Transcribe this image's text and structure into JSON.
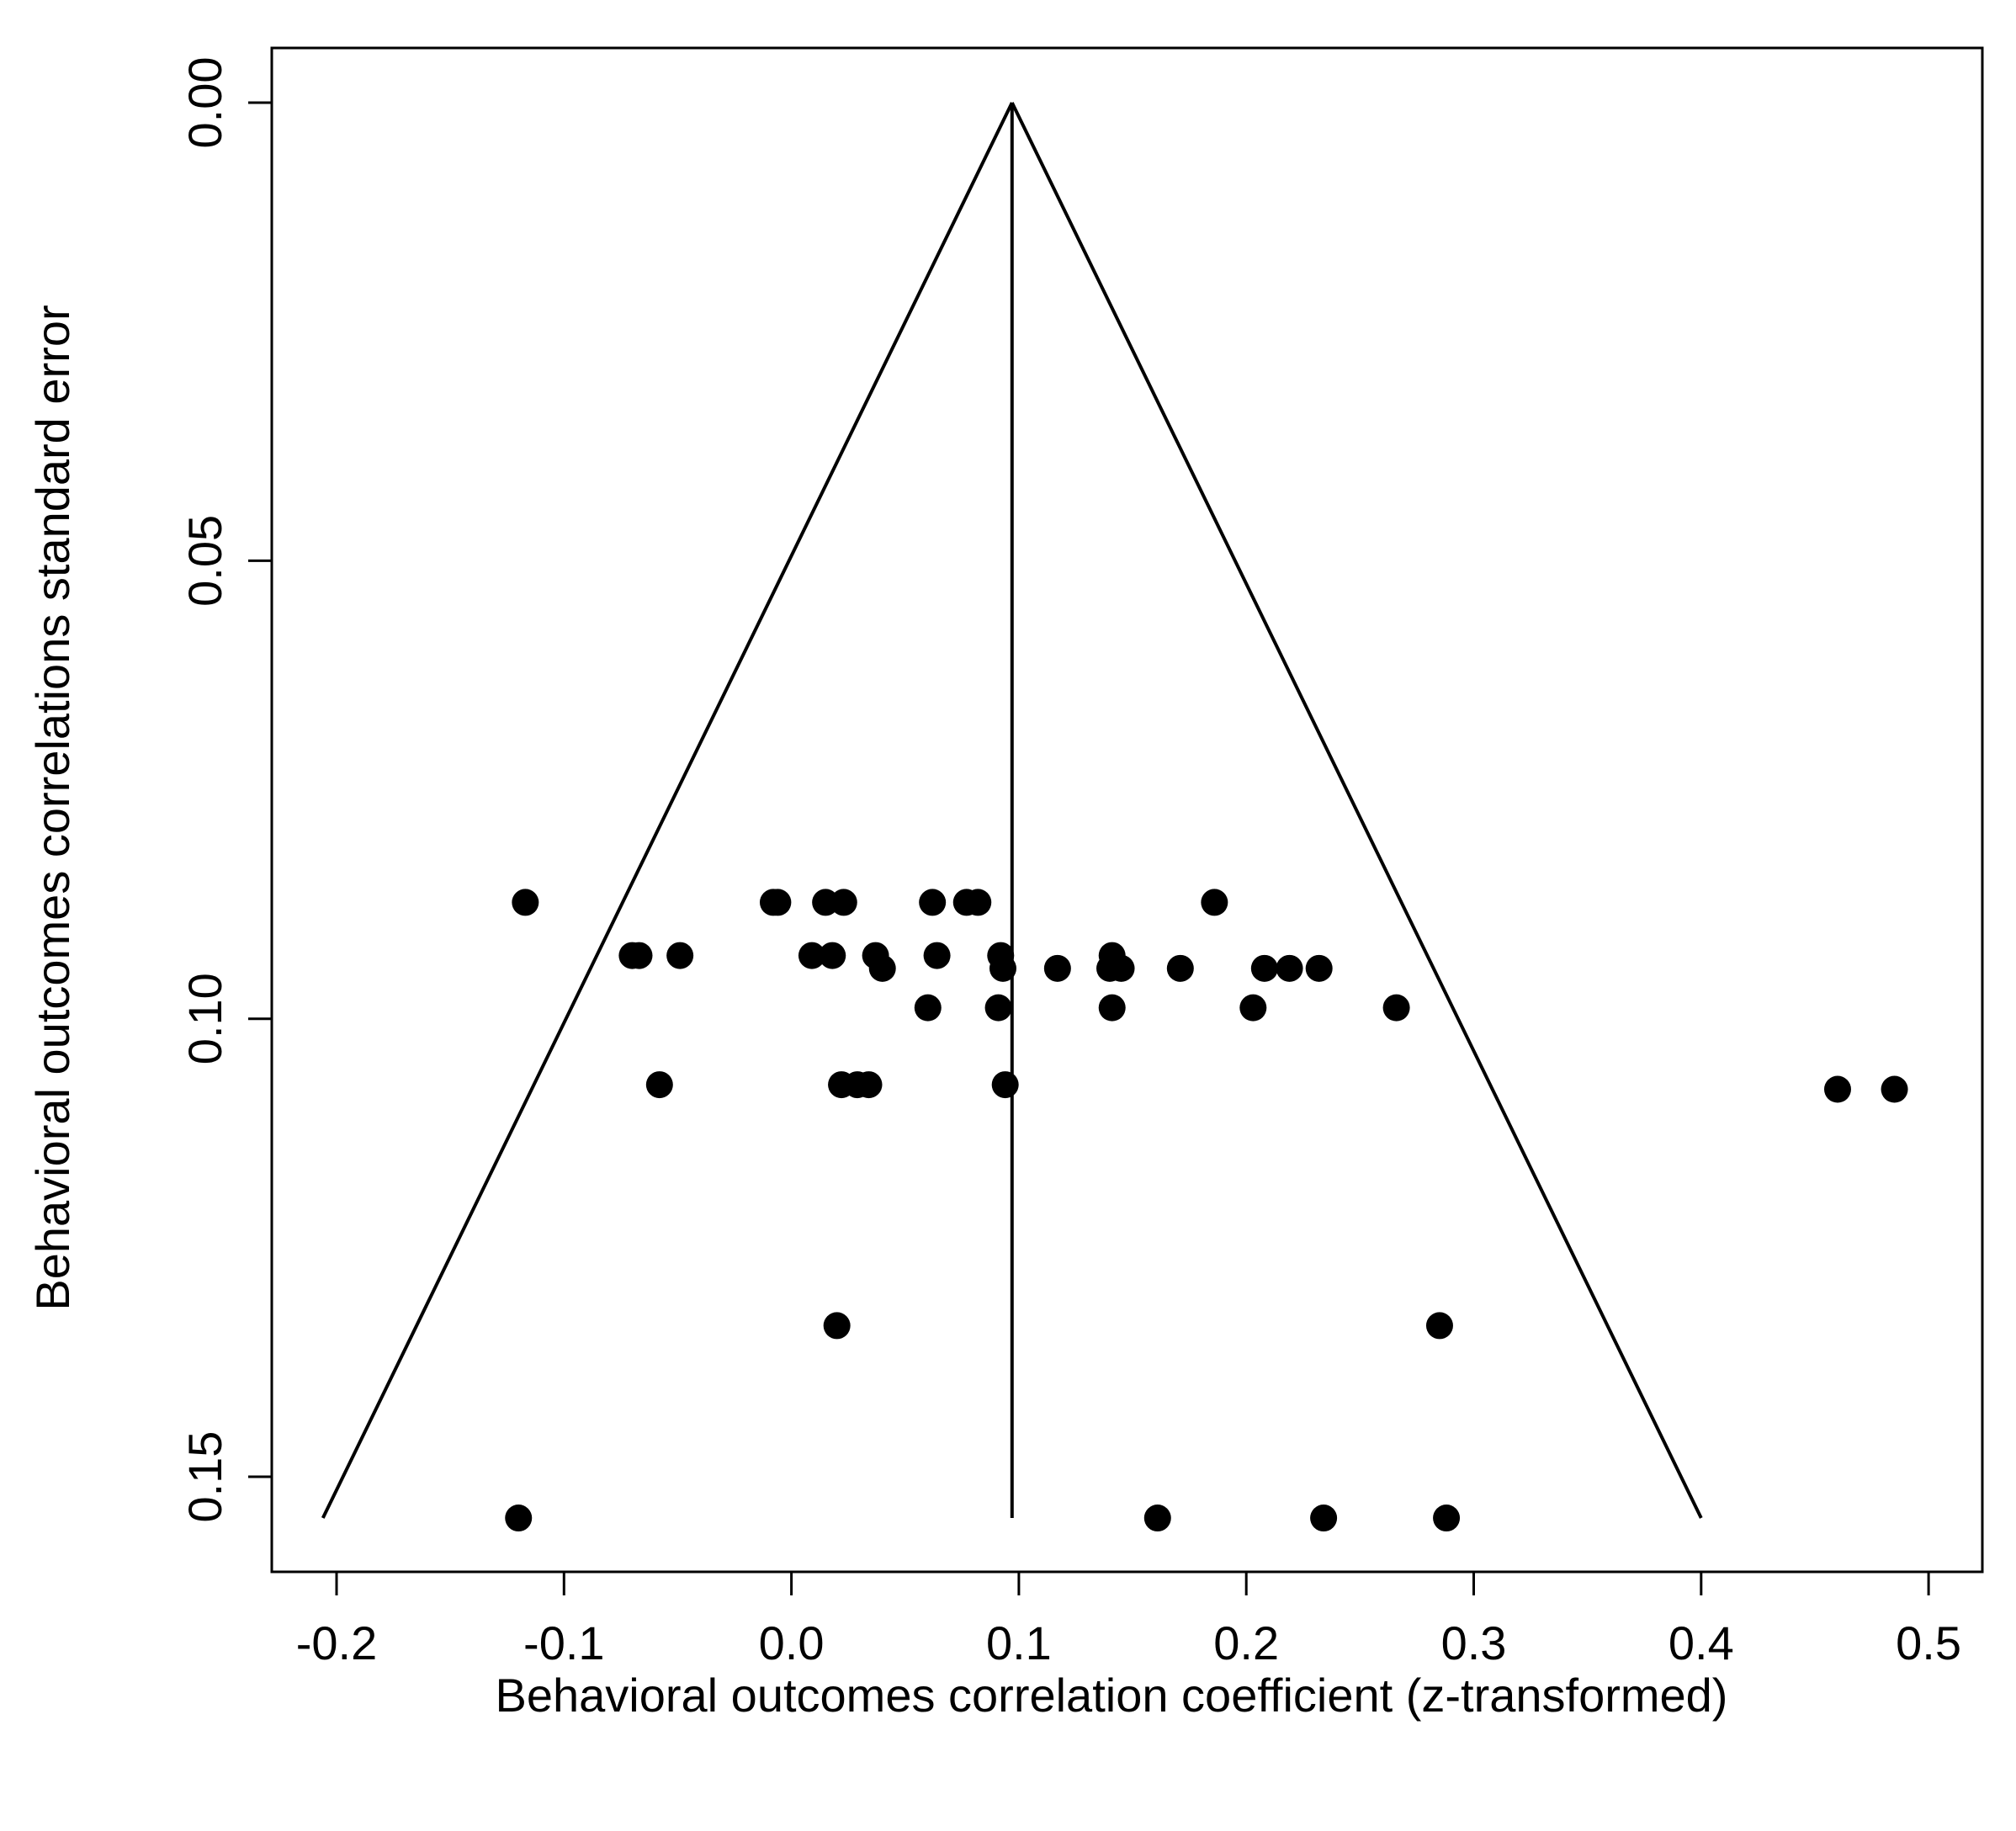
{
  "chart_data": {
    "type": "scatter",
    "subtype": "funnel plot",
    "title": "",
    "xlabel": "Behavioral outcomes correlation coefficient (z-transformed)",
    "ylabel": "Behavioral outcomes correlations standard error",
    "xlim": [
      -0.23,
      0.51
    ],
    "ylim": [
      0.0,
      0.155
    ],
    "y_reversed": true,
    "x_ticks": [
      "-0.2",
      "-0.1",
      "0.0",
      "0.1",
      "0.2",
      "0.3",
      "0.4",
      "0.5"
    ],
    "y_ticks": [
      "0.00",
      "0.05",
      "0.10",
      "0.15"
    ],
    "grid": false,
    "legend": "none",
    "colors": {
      "points": "#000000",
      "lines": "#000000",
      "background": "#ffffff"
    },
    "reference_line": {
      "x": 0.097,
      "y_from": 0.0,
      "y_to": 0.1545
    },
    "funnel": {
      "apex": [
        0.097,
        0.0
      ],
      "left_base": [
        -0.206,
        0.1545
      ],
      "right_base": [
        0.4,
        0.1545
      ]
    },
    "points": [
      {
        "x": -0.117,
        "y": 0.0873
      },
      {
        "x": -0.008,
        "y": 0.0873
      },
      {
        "x": -0.006,
        "y": 0.0873
      },
      {
        "x": 0.015,
        "y": 0.0873
      },
      {
        "x": 0.023,
        "y": 0.0873
      },
      {
        "x": 0.062,
        "y": 0.0873
      },
      {
        "x": 0.077,
        "y": 0.0873
      },
      {
        "x": 0.082,
        "y": 0.0873
      },
      {
        "x": 0.186,
        "y": 0.0873
      },
      {
        "x": -0.07,
        "y": 0.0931
      },
      {
        "x": -0.067,
        "y": 0.0931
      },
      {
        "x": -0.049,
        "y": 0.0931
      },
      {
        "x": 0.009,
        "y": 0.0931
      },
      {
        "x": 0.018,
        "y": 0.0931
      },
      {
        "x": 0.037,
        "y": 0.0931
      },
      {
        "x": 0.064,
        "y": 0.0931
      },
      {
        "x": 0.092,
        "y": 0.0931
      },
      {
        "x": 0.141,
        "y": 0.0931
      },
      {
        "x": 0.04,
        "y": 0.0945
      },
      {
        "x": 0.093,
        "y": 0.0945
      },
      {
        "x": 0.117,
        "y": 0.0945
      },
      {
        "x": 0.14,
        "y": 0.0945
      },
      {
        "x": 0.145,
        "y": 0.0945
      },
      {
        "x": 0.171,
        "y": 0.0945
      },
      {
        "x": 0.208,
        "y": 0.0945
      },
      {
        "x": 0.219,
        "y": 0.0945
      },
      {
        "x": 0.232,
        "y": 0.0945
      },
      {
        "x": 0.06,
        "y": 0.0988
      },
      {
        "x": 0.091,
        "y": 0.0988
      },
      {
        "x": 0.141,
        "y": 0.0988
      },
      {
        "x": 0.203,
        "y": 0.0988
      },
      {
        "x": 0.266,
        "y": 0.0988
      },
      {
        "x": -0.058,
        "y": 0.1072
      },
      {
        "x": 0.022,
        "y": 0.1072
      },
      {
        "x": 0.029,
        "y": 0.1072
      },
      {
        "x": 0.034,
        "y": 0.1072
      },
      {
        "x": 0.094,
        "y": 0.1072
      },
      {
        "x": 0.46,
        "y": 0.1077
      },
      {
        "x": 0.485,
        "y": 0.1077
      },
      {
        "x": 0.02,
        "y": 0.1335
      },
      {
        "x": 0.285,
        "y": 0.1335
      },
      {
        "x": -0.12,
        "y": 0.1545
      },
      {
        "x": 0.161,
        "y": 0.1545
      },
      {
        "x": 0.234,
        "y": 0.1545
      },
      {
        "x": 0.288,
        "y": 0.1545
      }
    ]
  }
}
